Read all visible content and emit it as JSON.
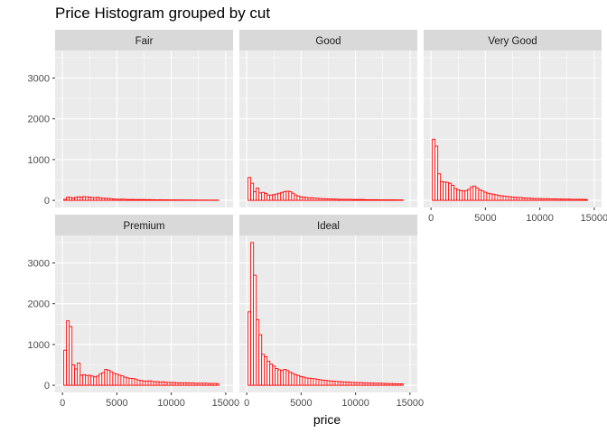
{
  "chart_data": {
    "type": "bar",
    "subtype": "faceted-histogram",
    "title": "Price Histogram grouped by cut",
    "xlabel": "price",
    "ylabel": "",
    "xlim": [
      0,
      15000
    ],
    "ylim": [
      0,
      3500
    ],
    "x_ticks": [
      0,
      5000,
      10000,
      15000
    ],
    "x_tick_labels": [
      "0",
      "5000",
      "10000",
      "15000"
    ],
    "y_ticks": [
      0,
      1000,
      2000,
      3000
    ],
    "y_tick_labels": [
      "0",
      "1000",
      "2000",
      "3000"
    ],
    "bin_width": 250,
    "bin_start": 250,
    "bar_fill": "#ffffff",
    "bar_stroke": "#ff0000",
    "colors": {
      "panel_bg": "#ebebeb",
      "grid_major": "#ffffff",
      "strip_bg": "#d9d9d9",
      "tick_text": "#4d4d4d"
    },
    "facets": [
      {
        "name": "Fair",
        "values": [
          25,
          80,
          70,
          55,
          75,
          85,
          80,
          90,
          85,
          80,
          70,
          65,
          75,
          60,
          55,
          50,
          45,
          40,
          30,
          30,
          25,
          30,
          25,
          22,
          20,
          22,
          18,
          20,
          18,
          20,
          15,
          18,
          15,
          15,
          12,
          15,
          12,
          12,
          12,
          10,
          10,
          10,
          10,
          10,
          8,
          8,
          8,
          8,
          8,
          6,
          6,
          6,
          6,
          5,
          5,
          5,
          5
        ]
      },
      {
        "name": "Good",
        "values": [
          560,
          420,
          210,
          300,
          180,
          195,
          170,
          130,
          130,
          140,
          155,
          175,
          195,
          215,
          225,
          215,
          175,
          130,
          105,
          85,
          80,
          70,
          60,
          65,
          55,
          50,
          45,
          40,
          40,
          35,
          35,
          30,
          30,
          25,
          25,
          25,
          25,
          25,
          20,
          20,
          20,
          20,
          20,
          15,
          15,
          15,
          15,
          15,
          12,
          12,
          12,
          12,
          12,
          12,
          10,
          10,
          10
        ]
      },
      {
        "name": "Very Good",
        "values": [
          1500,
          1330,
          650,
          460,
          450,
          440,
          420,
          370,
          290,
          260,
          240,
          230,
          240,
          270,
          330,
          350,
          300,
          255,
          230,
          200,
          175,
          160,
          150,
          135,
          120,
          110,
          100,
          95,
          90,
          80,
          75,
          70,
          70,
          60,
          55,
          55,
          50,
          45,
          45,
          45,
          40,
          40,
          40,
          35,
          35,
          35,
          30,
          30,
          30,
          30,
          30,
          25,
          25,
          25,
          25,
          25,
          20
        ]
      },
      {
        "name": "Premium",
        "values": [
          860,
          1580,
          1440,
          500,
          400,
          545,
          245,
          260,
          240,
          245,
          225,
          205,
          225,
          275,
          310,
          390,
          365,
          330,
          290,
          275,
          245,
          230,
          200,
          180,
          170,
          165,
          150,
          125,
          115,
          105,
          100,
          110,
          95,
          85,
          90,
          75,
          85,
          75,
          70,
          70,
          70,
          60,
          60,
          60,
          60,
          60,
          55,
          55,
          50,
          50,
          50,
          50,
          50,
          45,
          45,
          45,
          40
        ]
      },
      {
        "name": "Ideal",
        "values": [
          1800,
          3500,
          2700,
          1610,
          1240,
          760,
          700,
          590,
          520,
          470,
          410,
          380,
          360,
          390,
          360,
          320,
          290,
          260,
          240,
          215,
          200,
          180,
          175,
          165,
          160,
          145,
          135,
          125,
          120,
          110,
          105,
          100,
          95,
          90,
          85,
          80,
          80,
          75,
          70,
          70,
          65,
          65,
          60,
          60,
          55,
          55,
          50,
          50,
          50,
          45,
          45,
          40,
          40,
          40,
          35,
          35,
          35
        ]
      }
    ]
  }
}
